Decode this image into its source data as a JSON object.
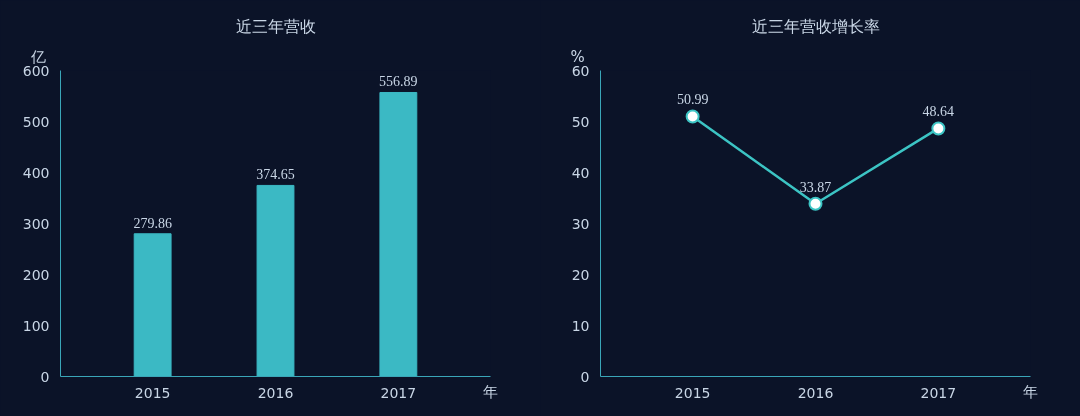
{
  "chart_data": [
    {
      "type": "bar",
      "title": "近三年营收",
      "ylabel": "亿",
      "xlabel": "年",
      "categories": [
        "2015",
        "2016",
        "2017"
      ],
      "values": [
        279.86,
        374.65,
        556.89
      ],
      "color": "#3bb9c4",
      "ylim": [
        0,
        600
      ],
      "yticks": [
        0,
        100,
        200,
        300,
        400,
        500,
        600
      ],
      "data_labels": true,
      "grid": false
    },
    {
      "type": "line",
      "title": "近三年营收增长率",
      "ylabel": "%",
      "xlabel": "年",
      "categories": [
        "2015",
        "2016",
        "2017"
      ],
      "values": [
        50.99,
        33.87,
        48.64
      ],
      "color": "#3cc4c4",
      "ylim": [
        0,
        60
      ],
      "yticks": [
        0,
        10,
        20,
        30,
        40,
        50,
        60
      ],
      "data_labels": true,
      "grid": false,
      "marker": "circle",
      "line_style": "solid"
    }
  ]
}
